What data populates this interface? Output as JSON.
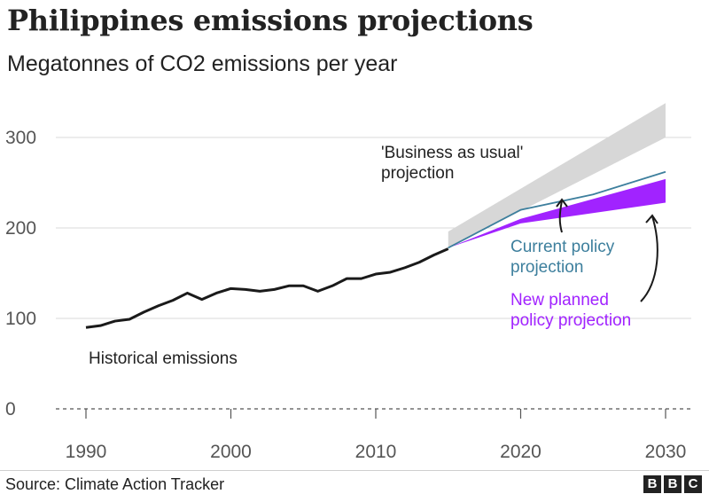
{
  "title": "Philippines emissions projections",
  "subtitle": "Megatonnes of CO2 emissions per year",
  "source": "Source: Climate Action Tracker",
  "logo": [
    "B",
    "B",
    "C"
  ],
  "colors": {
    "historical": "#1a1a1a",
    "bau_band": "#d7d7d7",
    "current_policy": "#3d7f9d",
    "new_planned": "#a123ff",
    "grid": "#d9d9d9",
    "text": "#222222"
  },
  "chart_data": {
    "type": "line",
    "title": "Philippines emissions projections",
    "subtitle": "Megatonnes of CO2 emissions per year",
    "xlim": [
      1990,
      2030
    ],
    "ylim": [
      0,
      300
    ],
    "x_ticks": [
      1990,
      2000,
      2010,
      2020,
      2030
    ],
    "y_ticks": [
      0,
      100,
      200,
      300
    ],
    "grid": true,
    "series": [
      {
        "name": "Historical emissions",
        "kind": "line",
        "x": [
          1990,
          1991,
          1992,
          1993,
          1994,
          1995,
          1996,
          1997,
          1998,
          1999,
          2000,
          2001,
          2002,
          2003,
          2004,
          2005,
          2006,
          2007,
          2008,
          2009,
          2010,
          2011,
          2012,
          2013,
          2014,
          2015
        ],
        "y": [
          90,
          92,
          97,
          99,
          107,
          114,
          120,
          128,
          121,
          128,
          133,
          132,
          130,
          132,
          136,
          136,
          130,
          136,
          144,
          144,
          149,
          151,
          156,
          162,
          170,
          177
        ]
      },
      {
        "name": "'Business as usual' projection",
        "kind": "band",
        "x": [
          2015,
          2030
        ],
        "lower": [
          178,
          300
        ],
        "upper": [
          196,
          338
        ]
      },
      {
        "name": "Current policy projection",
        "kind": "line",
        "x": [
          2015,
          2020,
          2025,
          2030
        ],
        "y": [
          178,
          220,
          237,
          262
        ]
      },
      {
        "name": "New planned policy projection",
        "kind": "band",
        "x": [
          2015,
          2020,
          2030
        ],
        "lower": [
          178,
          205,
          228
        ],
        "upper": [
          178,
          210,
          254
        ]
      }
    ],
    "annotations": [
      {
        "series": 0,
        "lines": [
          "Historical emissions"
        ]
      },
      {
        "series": 1,
        "lines": [
          "'Business as usual'",
          "projection"
        ]
      },
      {
        "series": 2,
        "lines": [
          "Current policy",
          "projection"
        ]
      },
      {
        "series": 3,
        "lines": [
          "New planned",
          "policy projection"
        ]
      }
    ]
  }
}
